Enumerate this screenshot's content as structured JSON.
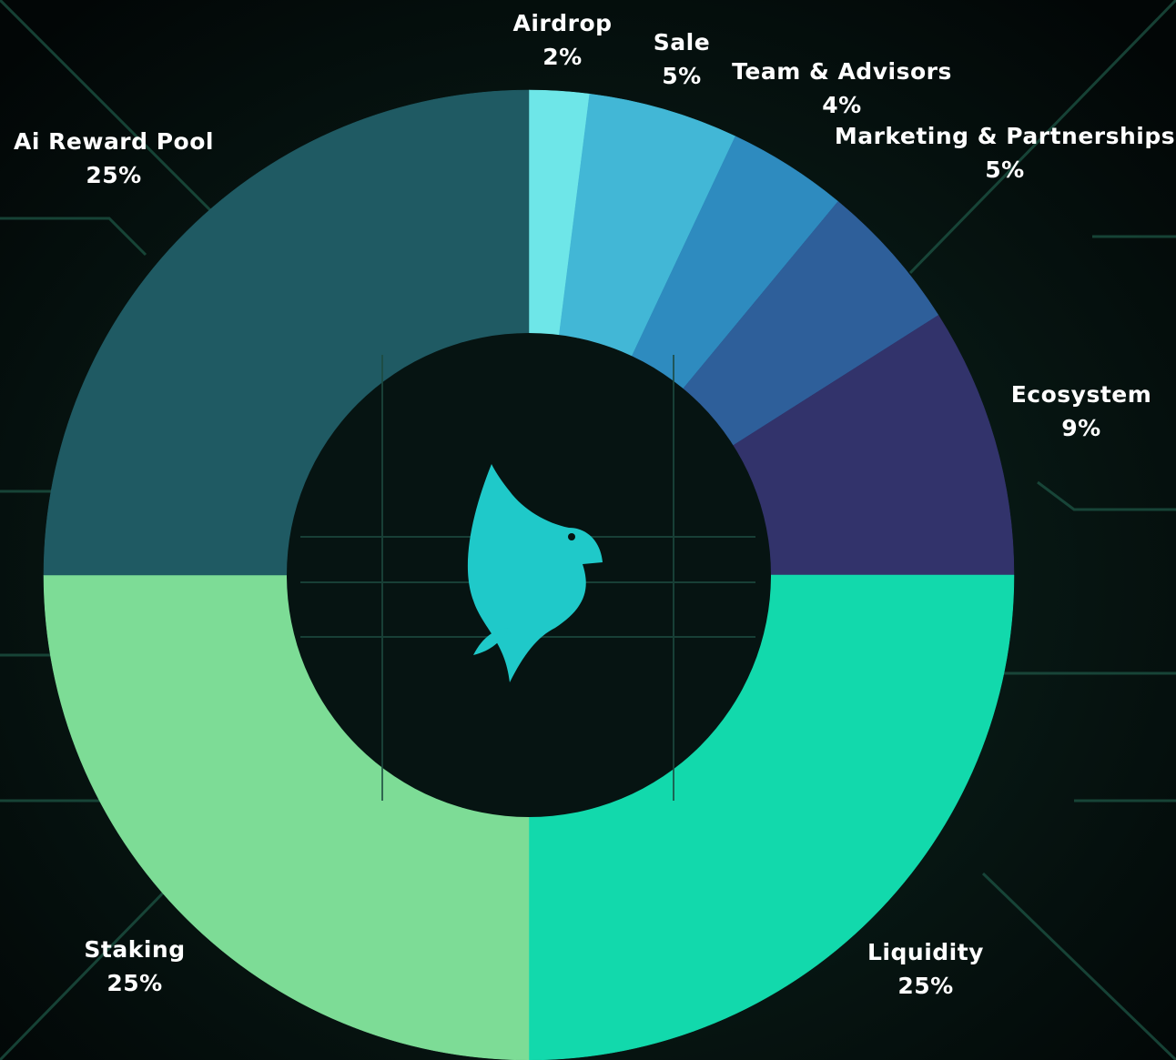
{
  "chart_data": {
    "type": "donut",
    "categories": [
      "Airdrop",
      "Sale",
      "Team & Advisors",
      "Marketing & Partnerships",
      "Ecosystem",
      "Liquidity",
      "Staking",
      "Ai Reward Pool"
    ],
    "values": [
      2,
      5,
      4,
      5,
      9,
      25,
      25,
      25
    ],
    "value_labels": [
      "2%",
      "5%",
      "4%",
      "5%",
      "9%",
      "25%",
      "25%",
      "25%"
    ],
    "colors": [
      "#6ee6e8",
      "#42b7d6",
      "#2e8bbf",
      "#2e5f9a",
      "#32336b",
      "#12d9ac",
      "#7ddc96",
      "#1f5a63"
    ]
  }
}
